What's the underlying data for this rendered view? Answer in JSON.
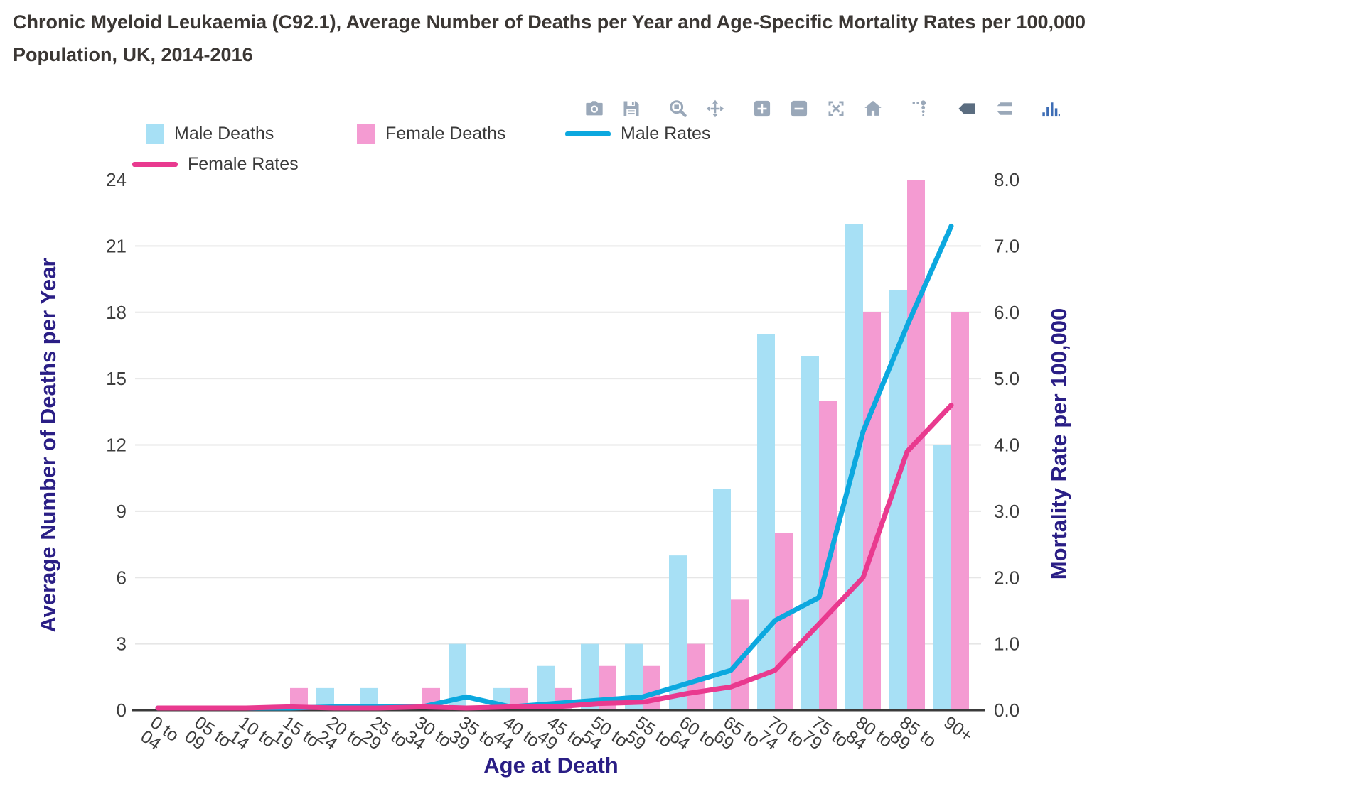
{
  "title": "Chronic Myeloid Leukaemia (C92.1), Average Number of Deaths per Year and Age-Specific Mortality Rates per 100,000 Population, UK, 2014-2016",
  "modebar": {
    "buttons": [
      "camera",
      "save",
      "zoom",
      "pan",
      "zoom-in",
      "zoom-out",
      "autoscale",
      "home",
      "spikelines",
      "hover-closest",
      "hover-compare",
      "plotly-logo"
    ],
    "active_button": "hover-closest"
  },
  "legend": {
    "items": [
      {
        "label": "Male Deaths",
        "type": "bar",
        "color": "#a7e0f5"
      },
      {
        "label": "Female Deaths",
        "type": "bar",
        "color": "#f49bd2"
      },
      {
        "label": "Male Rates",
        "type": "line",
        "color": "#0ca8df"
      },
      {
        "label": "Female Rates",
        "type": "line",
        "color": "#e93a8f"
      }
    ]
  },
  "colors": {
    "male_bar": "#a7e0f5",
    "female_bar": "#f49bd2",
    "male_line": "#0ca8df",
    "female_line": "#e93a8f",
    "axis_title": "#2a1e85",
    "tick_text": "#3d3d3d",
    "gridline": "#e6e6e6",
    "axis_line": "#3a3a3a",
    "modebar_icon": "#9aa8b9",
    "modebar_active": "#5b6d80",
    "plotly_logo": "#3d6db5"
  },
  "chart_data": {
    "type": "bar",
    "subtype": "grouped bars with dual-axis overlay lines",
    "title": "Chronic Myeloid Leukaemia (C92.1), Average Number of Deaths per Year and Age-Specific Mortality Rates per 100,000 Population, UK, 2014-2016",
    "categories": [
      "0 to 04",
      "05 to 09",
      "10 to 14",
      "15 to 19",
      "20 to 24",
      "25 to 29",
      "30 to 34",
      "35 to 39",
      "40 to 44",
      "45 to 49",
      "50 to 54",
      "55 to 59",
      "60 to 64",
      "65 to 69",
      "70 to 74",
      "75 to 79",
      "80 to 84",
      "85 to 89",
      "90+"
    ],
    "categories_two_line": [
      [
        "0 to",
        "04"
      ],
      [
        "05 to",
        "09"
      ],
      [
        "10 to",
        "14"
      ],
      [
        "15 to",
        "19"
      ],
      [
        "20 to",
        "24"
      ],
      [
        "25 to",
        "29"
      ],
      [
        "30 to",
        "34"
      ],
      [
        "35 to",
        "39"
      ],
      [
        "40 to",
        "44"
      ],
      [
        "45 to",
        "49"
      ],
      [
        "50 to",
        "54"
      ],
      [
        "55 to",
        "59"
      ],
      [
        "60 to",
        "64"
      ],
      [
        "65 to",
        "69"
      ],
      [
        "70 to",
        "74"
      ],
      [
        "75 to",
        "79"
      ],
      [
        "80 to",
        "84"
      ],
      [
        "85 to",
        "89"
      ],
      [
        "90+",
        ""
      ]
    ],
    "series": [
      {
        "name": "Male Deaths",
        "type": "bar",
        "axis": "left",
        "color": "#a7e0f5",
        "values": [
          0,
          0,
          0,
          0,
          1,
          1,
          0,
          3,
          1,
          2,
          3,
          3,
          7,
          10,
          17,
          16,
          22,
          19,
          12
        ]
      },
      {
        "name": "Female Deaths",
        "type": "bar",
        "axis": "left",
        "color": "#f49bd2",
        "values": [
          0,
          0,
          0,
          1,
          0,
          0,
          1,
          0,
          1,
          1,
          2,
          2,
          3,
          5,
          8,
          14,
          18,
          24,
          18
        ]
      },
      {
        "name": "Male Rates",
        "type": "line",
        "axis": "right",
        "color": "#0ca8df",
        "values": [
          0,
          0,
          0,
          0,
          0.05,
          0.05,
          0.05,
          0.2,
          0.05,
          0.1,
          0.15,
          0.2,
          0.4,
          0.6,
          1.35,
          1.7,
          4.2,
          5.8,
          7.3
        ]
      },
      {
        "name": "Female Rates",
        "type": "line",
        "axis": "right",
        "color": "#e93a8f",
        "values": [
          0.02,
          0.02,
          0.02,
          0.05,
          0.02,
          0.02,
          0.05,
          0.02,
          0.05,
          0.05,
          0.1,
          0.12,
          0.25,
          0.35,
          0.6,
          1.3,
          2.0,
          3.9,
          4.6
        ]
      }
    ],
    "x_axis": {
      "label": "Age at Death"
    },
    "left_axis": {
      "label": "Average Number of Deaths per Year",
      "ticks": [
        0,
        3,
        6,
        9,
        12,
        15,
        18,
        21,
        24
      ],
      "range": [
        0,
        24
      ]
    },
    "right_axis": {
      "label": "Mortality Rate per 100,000",
      "ticks": [
        "0.0",
        "1.0",
        "2.0",
        "3.0",
        "4.0",
        "5.0",
        "6.0",
        "7.0",
        "8.0"
      ],
      "range": [
        0,
        8
      ]
    },
    "grid": true,
    "legend_position": "top-left horizontal, wrapped to two rows"
  }
}
